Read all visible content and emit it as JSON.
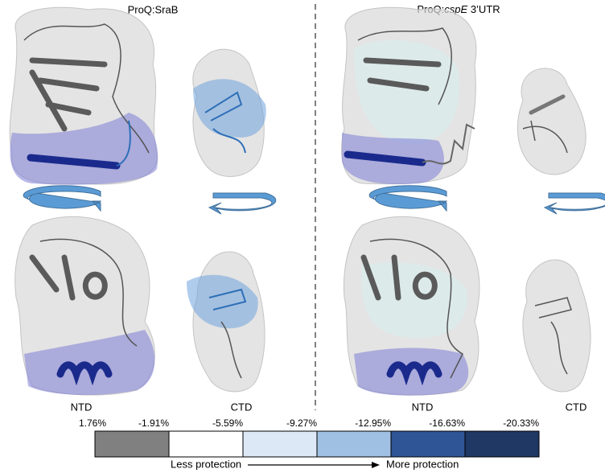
{
  "panels": [
    {
      "title": "ProQ:SraB",
      "labels": [
        "NTD",
        "CTD"
      ]
    },
    {
      "title_parts": [
        "ProQ:",
        "cspE",
        " 3’UTR"
      ],
      "labels": [
        "NTD",
        "CTD"
      ]
    }
  ],
  "colorbar": {
    "ticks": [
      "1.76%",
      "-1.91%",
      "-5.59%",
      "-9.27%",
      "-12.95%",
      "-16.63%",
      "-20.33%"
    ],
    "colors": [
      "#808080",
      "#ffffff",
      "#dce8f5",
      "#9fc0e2",
      "#2f5597",
      "#1f3864"
    ],
    "left_label": "Less protection",
    "right_label": "More protection"
  }
}
